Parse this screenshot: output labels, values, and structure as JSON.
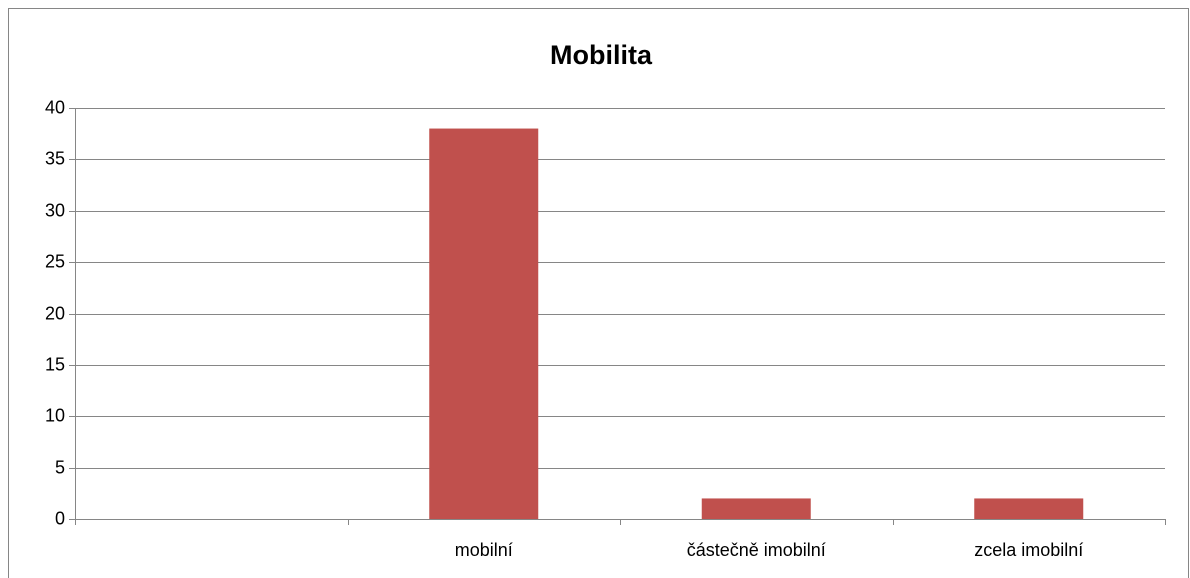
{
  "chart_data": {
    "type": "bar",
    "title": "Mobilita",
    "categories": [
      null,
      "mobilní",
      "částečně imobilní",
      "zcela imobilní"
    ],
    "values": [
      null,
      38,
      2,
      2
    ],
    "color": "#c0504d",
    "ylim": [
      0,
      40
    ],
    "yticks": [
      0,
      5,
      10,
      15,
      20,
      25,
      30,
      35,
      40
    ],
    "grid": true
  }
}
